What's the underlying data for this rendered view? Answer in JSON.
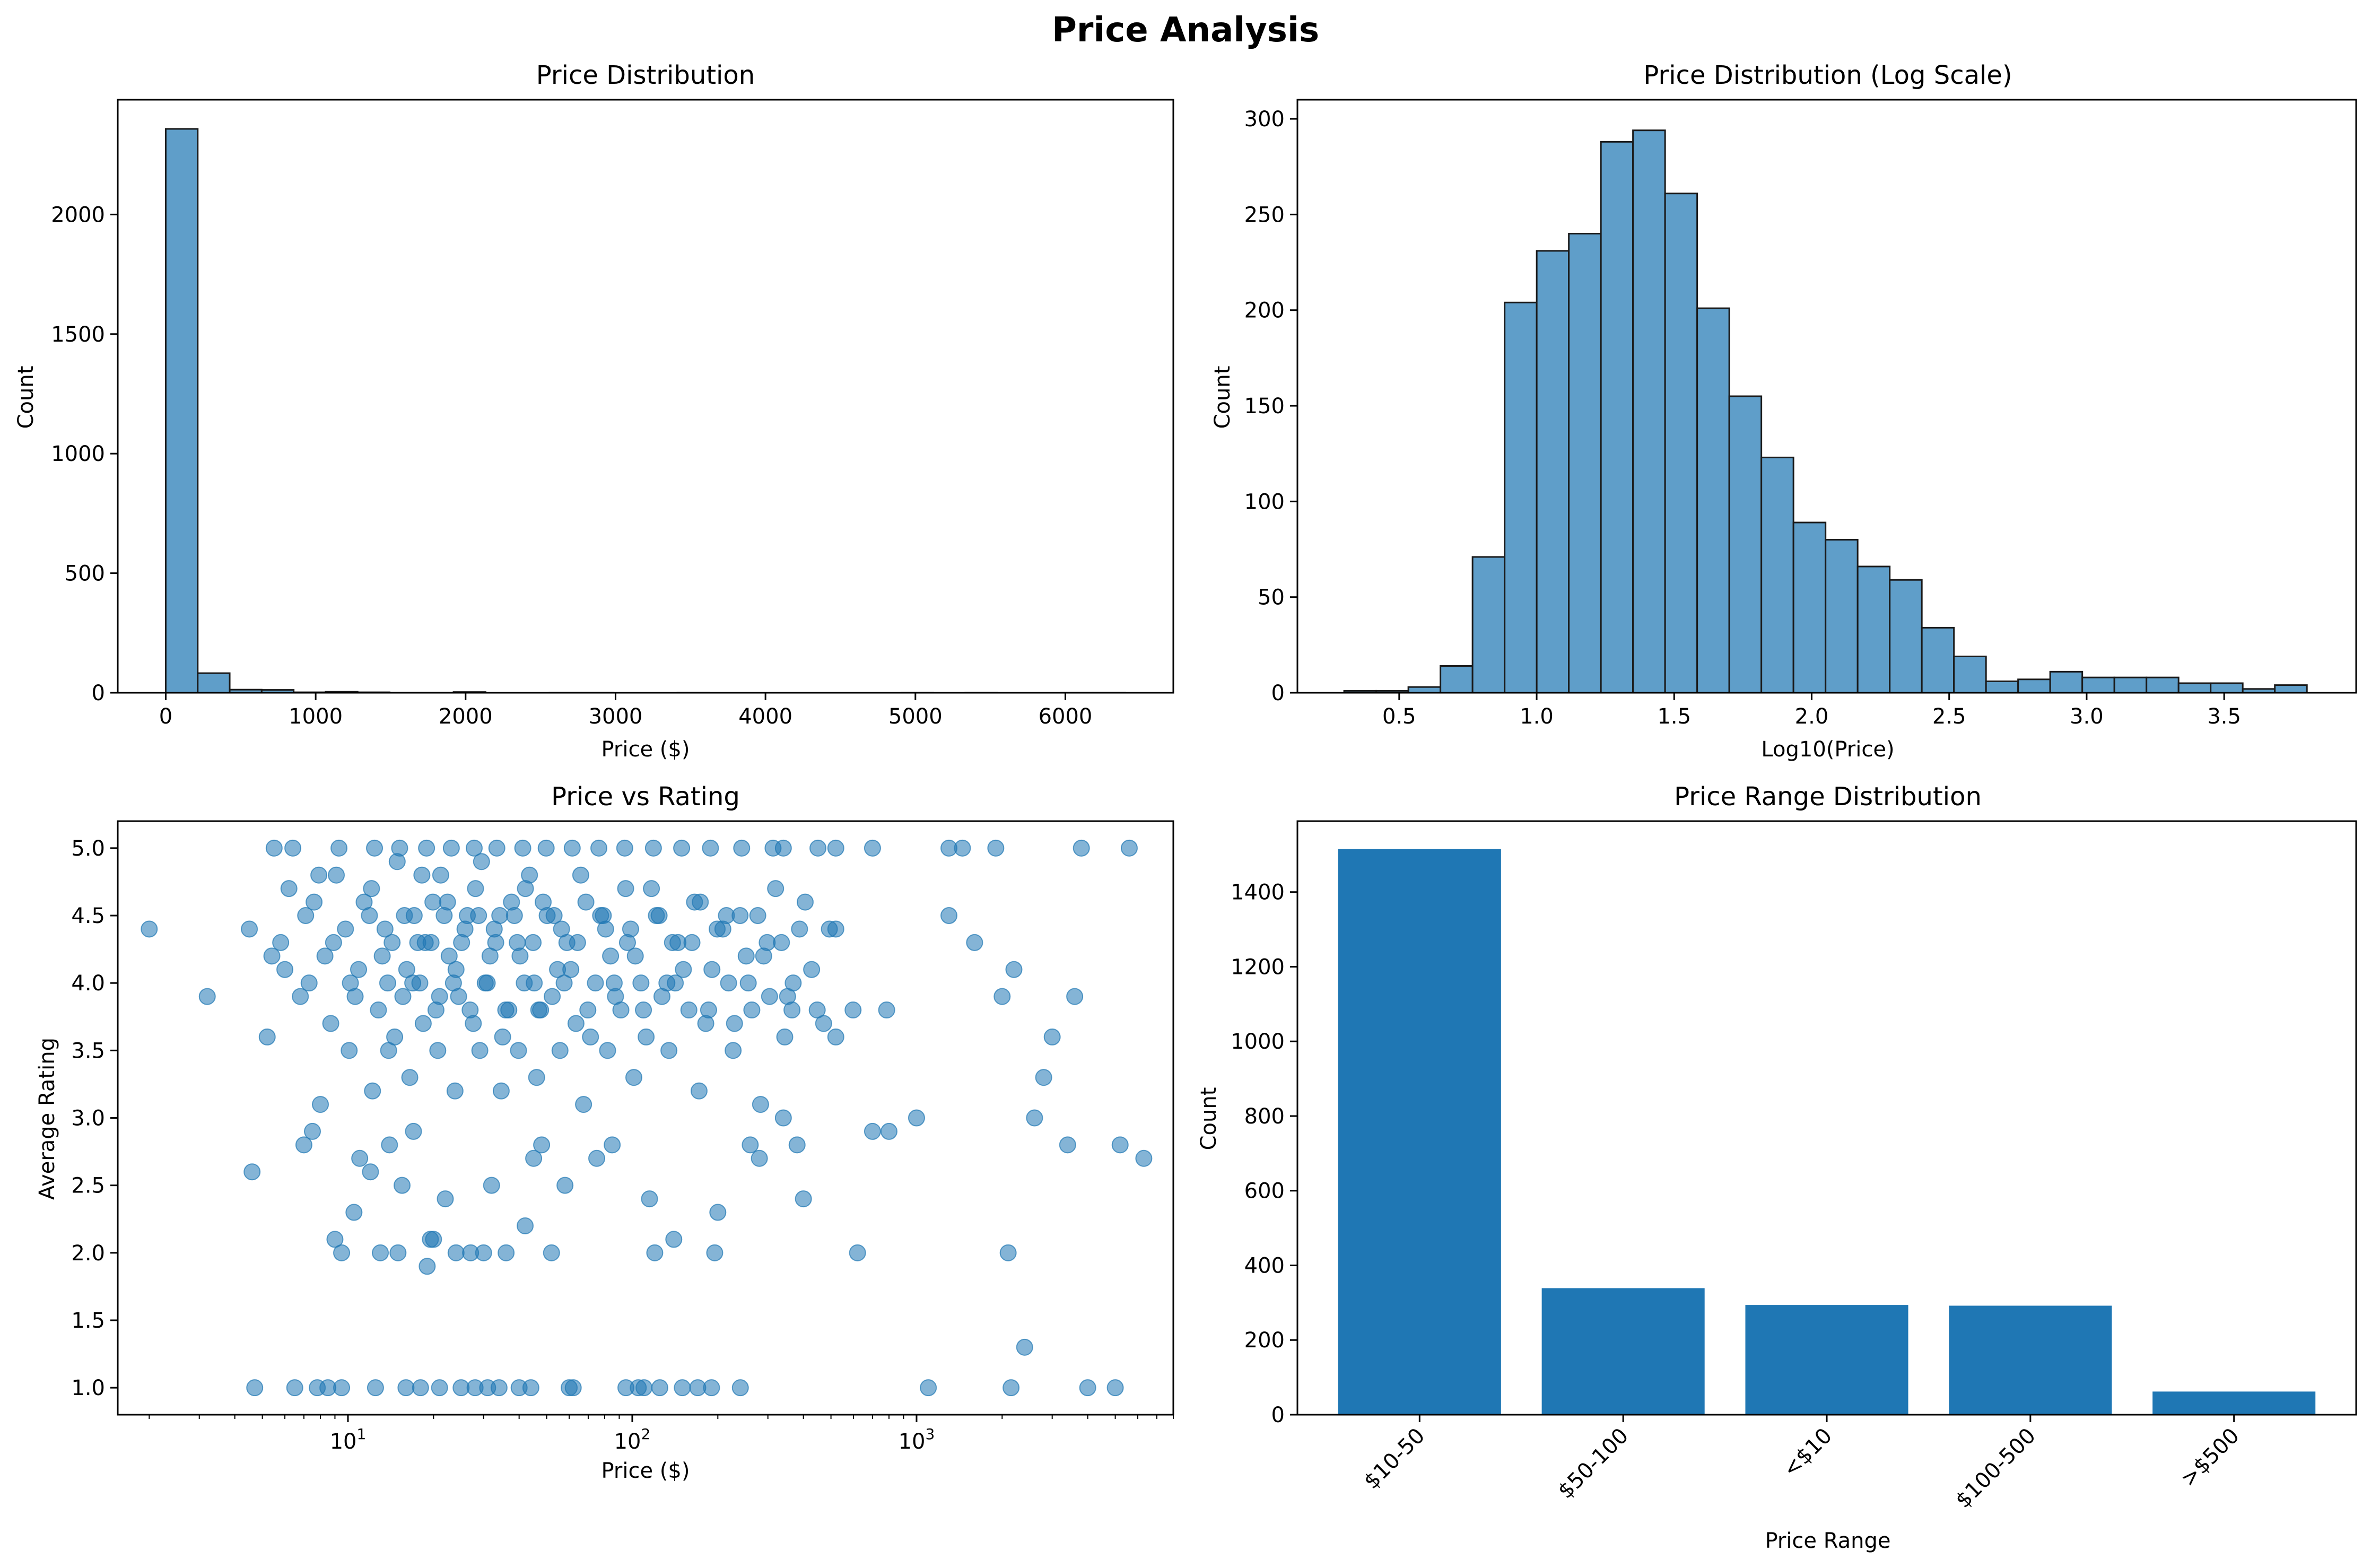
{
  "figure": {
    "title": "Price Analysis"
  },
  "colors": {
    "bar": "#1f77b4",
    "hist_face": "#5f9ec9",
    "hist_edge": "#1a1a1a",
    "axis": "#000000"
  },
  "chart_data": [
    {
      "id": "price-distribution",
      "type": "bar",
      "title": "Price Distribution",
      "xlabel": "Price ($)",
      "ylabel": "Count",
      "xlim": [
        -320,
        6720
      ],
      "ylim": [
        0,
        2480
      ],
      "xticks": [
        0,
        1000,
        2000,
        3000,
        4000,
        5000,
        6000
      ],
      "yticks": [
        0,
        500,
        1000,
        1500,
        2000
      ],
      "bin_start": 0,
      "bin_width": 213.3,
      "counts": [
        2358,
        82,
        13,
        12,
        2,
        4,
        2,
        1,
        1,
        3,
        0,
        0,
        1,
        1,
        0,
        0,
        1,
        0,
        0,
        0,
        0,
        0,
        0,
        1,
        0,
        1,
        0,
        0,
        1,
        1
      ]
    },
    {
      "id": "price-distribution-log",
      "type": "bar",
      "title": "Price Distribution (Log Scale)",
      "xlabel": "Log10(Price)",
      "ylabel": "Count",
      "xlim": [
        0.13,
        3.98
      ],
      "ylim": [
        0,
        310
      ],
      "xticks": [
        0.5,
        1.0,
        1.5,
        2.0,
        2.5,
        3.0,
        3.5
      ],
      "yticks": [
        0,
        50,
        100,
        150,
        200,
        250,
        300
      ],
      "bin_start": 0.3,
      "bin_width": 0.1167,
      "counts": [
        1,
        1,
        3,
        14,
        71,
        204,
        231,
        240,
        288,
        294,
        261,
        201,
        155,
        123,
        89,
        80,
        66,
        59,
        34,
        19,
        6,
        7,
        11,
        8,
        8,
        8,
        5,
        5,
        2,
        4
      ]
    },
    {
      "id": "price-vs-rating",
      "type": "scatter",
      "title": "Price vs Rating",
      "xlabel": "Price ($)",
      "ylabel": "Average Rating",
      "xscale": "log",
      "xlim": [
        1.55,
        8000
      ],
      "ylim": [
        0.8,
        5.2
      ],
      "xticks": [
        10,
        100,
        1000
      ],
      "xtick_labels": [
        {
          "base": "10",
          "exp": "1"
        },
        {
          "base": "10",
          "exp": "2"
        },
        {
          "base": "10",
          "exp": "3"
        }
      ],
      "yticks": [
        1.0,
        1.5,
        2.0,
        2.5,
        3.0,
        3.5,
        4.0,
        4.5,
        5.0
      ],
      "points": [
        [
          2,
          4.4
        ],
        [
          3.2,
          3.9
        ],
        [
          4.5,
          4.4
        ],
        [
          4.6,
          2.6
        ],
        [
          4.7,
          1.0
        ],
        [
          5.2,
          3.6
        ],
        [
          6,
          4.1
        ],
        [
          6.5,
          1.0
        ],
        [
          7,
          2.8
        ],
        [
          7.5,
          2.9
        ],
        [
          7.8,
          1.0
        ],
        [
          8,
          3.1
        ],
        [
          8.5,
          1.0
        ],
        [
          9,
          2.1
        ],
        [
          9.5,
          2.0
        ],
        [
          9.5,
          1.0
        ],
        [
          10.5,
          2.3
        ],
        [
          11,
          2.7
        ],
        [
          12,
          2.6
        ],
        [
          12.5,
          1.0
        ],
        [
          13,
          2.0
        ],
        [
          14,
          2.8
        ],
        [
          15,
          2.0
        ],
        [
          15.5,
          2.5
        ],
        [
          16,
          1.0
        ],
        [
          17,
          2.9
        ],
        [
          18,
          1.0
        ],
        [
          19,
          1.9
        ],
        [
          19.5,
          2.1
        ],
        [
          20,
          2.1
        ],
        [
          21,
          1.0
        ],
        [
          22,
          2.4
        ],
        [
          24,
          2.0
        ],
        [
          25,
          1.0
        ],
        [
          27,
          2.0
        ],
        [
          28,
          1.0
        ],
        [
          30,
          2.0
        ],
        [
          31,
          1.0
        ],
        [
          32,
          2.5
        ],
        [
          34,
          1.0
        ],
        [
          36,
          2.0
        ],
        [
          40,
          1.0
        ],
        [
          42,
          2.2
        ],
        [
          44,
          1.0
        ],
        [
          45,
          2.7
        ],
        [
          48,
          2.8
        ],
        [
          52,
          2.0
        ],
        [
          58,
          2.5
        ],
        [
          60,
          1.0
        ],
        [
          62,
          1.0
        ],
        [
          75,
          2.7
        ],
        [
          85,
          2.8
        ],
        [
          95,
          1.0
        ],
        [
          105,
          1.0
        ],
        [
          110,
          1.0
        ],
        [
          115,
          2.4
        ],
        [
          120,
          2.0
        ],
        [
          125,
          1.0
        ],
        [
          140,
          2.1
        ],
        [
          150,
          1.0
        ],
        [
          170,
          1.0
        ],
        [
          190,
          1.0
        ],
        [
          195,
          2.0
        ],
        [
          200,
          2.3
        ],
        [
          240,
          1.0
        ],
        [
          260,
          2.8
        ],
        [
          280,
          2.7
        ],
        [
          340,
          3.0
        ],
        [
          380,
          2.8
        ],
        [
          400,
          2.4
        ],
        [
          520,
          3.6
        ],
        [
          620,
          2.0
        ],
        [
          700,
          2.9
        ],
        [
          800,
          2.9
        ],
        [
          1000,
          3.0
        ],
        [
          1100,
          1.0
        ],
        [
          1300,
          4.5
        ],
        [
          1600,
          4.3
        ],
        [
          2000,
          3.9
        ],
        [
          2100,
          2.0
        ],
        [
          2150,
          1.0
        ],
        [
          2200,
          4.1
        ],
        [
          2400,
          1.3
        ],
        [
          2600,
          3.0
        ],
        [
          2800,
          3.3
        ],
        [
          3000,
          3.6
        ],
        [
          3400,
          2.8
        ],
        [
          3600,
          3.9
        ],
        [
          4000,
          1.0
        ],
        [
          5000,
          1.0
        ],
        [
          5200,
          2.8
        ],
        [
          6300,
          2.7
        ],
        [
          5.5,
          5.0
        ],
        [
          6.2,
          4.7
        ],
        [
          7.1,
          4.5
        ],
        [
          8.3,
          4.2
        ],
        [
          9.1,
          4.8
        ],
        [
          10.2,
          4.0
        ],
        [
          11.4,
          4.6
        ],
        [
          12.8,
          3.8
        ],
        [
          13.5,
          4.4
        ],
        [
          14.9,
          4.9
        ],
        [
          16.1,
          4.1
        ],
        [
          17.6,
          4.3
        ],
        [
          18.4,
          3.7
        ],
        [
          19.9,
          4.6
        ],
        [
          21.2,
          4.8
        ],
        [
          22.7,
          4.2
        ],
        [
          24.5,
          3.9
        ],
        [
          26.3,
          4.5
        ],
        [
          28.1,
          4.7
        ],
        [
          30.4,
          4.0
        ],
        [
          32.7,
          4.4
        ],
        [
          35.0,
          3.6
        ],
        [
          37.6,
          4.6
        ],
        [
          40.3,
          4.2
        ],
        [
          43.5,
          4.8
        ],
        [
          46.9,
          3.8
        ],
        [
          50.2,
          4.5
        ],
        [
          54.6,
          4.1
        ],
        [
          58.9,
          4.3
        ],
        [
          63.4,
          3.7
        ],
        [
          68.7,
          4.6
        ],
        [
          74.2,
          4.0
        ],
        [
          80.6,
          4.4
        ],
        [
          87.3,
          3.9
        ],
        [
          94.8,
          4.7
        ],
        [
          102.5,
          4.2
        ],
        [
          111.9,
          3.6
        ],
        [
          121.6,
          4.5
        ],
        [
          132.4,
          4.0
        ],
        [
          144.8,
          4.3
        ],
        [
          158.2,
          3.8
        ],
        [
          173.5,
          4.6
        ],
        [
          190.7,
          4.1
        ],
        [
          208.3,
          4.4
        ],
        [
          228.9,
          3.7
        ],
        [
          251.6,
          4.2
        ],
        [
          276.4,
          4.5
        ],
        [
          304.1,
          3.9
        ],
        [
          334.8,
          4.3
        ],
        [
          368.2,
          4.0
        ],
        [
          405.7,
          4.6
        ],
        [
          447.3,
          3.8
        ],
        [
          493.6,
          4.4
        ],
        [
          5.8,
          4.3
        ],
        [
          6.8,
          3.9
        ],
        [
          7.6,
          4.6
        ],
        [
          8.7,
          3.7
        ],
        [
          9.8,
          4.4
        ],
        [
          10.9,
          4.1
        ],
        [
          12.1,
          4.7
        ],
        [
          13.2,
          4.2
        ],
        [
          14.6,
          3.6
        ],
        [
          15.8,
          4.5
        ],
        [
          16.9,
          4.0
        ],
        [
          18.2,
          4.8
        ],
        [
          19.6,
          4.3
        ],
        [
          21.0,
          3.9
        ],
        [
          22.4,
          4.6
        ],
        [
          24.0,
          4.1
        ],
        [
          25.8,
          4.4
        ],
        [
          27.6,
          3.7
        ],
        [
          29.5,
          4.9
        ],
        [
          31.6,
          4.2
        ],
        [
          34.2,
          4.5
        ],
        [
          36.8,
          3.8
        ],
        [
          39.4,
          4.3
        ],
        [
          42.1,
          4.7
        ],
        [
          45.2,
          4.0
        ],
        [
          48.6,
          4.6
        ],
        [
          52.3,
          3.9
        ],
        [
          56.4,
          4.4
        ],
        [
          60.8,
          4.1
        ],
        [
          65.9,
          4.8
        ],
        [
          71.3,
          3.6
        ],
        [
          77.4,
          4.5
        ],
        [
          83.9,
          4.2
        ],
        [
          91.2,
          3.8
        ],
        [
          98.7,
          4.4
        ],
        [
          107.3,
          4.0
        ],
        [
          116.8,
          4.7
        ],
        [
          127.2,
          3.9
        ],
        [
          138.5,
          4.3
        ],
        [
          151.3,
          4.1
        ],
        [
          165.6,
          4.6
        ],
        [
          181.4,
          3.7
        ],
        [
          198.9,
          4.4
        ],
        [
          218.2,
          4.0
        ],
        [
          239.5,
          4.5
        ],
        [
          263.4,
          3.8
        ],
        [
          289.9,
          4.2
        ],
        [
          319.3,
          4.7
        ],
        [
          351.8,
          3.9
        ],
        [
          387.6,
          4.4
        ],
        [
          427.5,
          4.1
        ],
        [
          471.2,
          3.7
        ],
        [
          520.0,
          4.4
        ],
        [
          6.4,
          5.0
        ],
        [
          9.3,
          5.0
        ],
        [
          12.4,
          5.0
        ],
        [
          15.2,
          5.0
        ],
        [
          18.9,
          5.0
        ],
        [
          23.1,
          5.0
        ],
        [
          27.8,
          5.0
        ],
        [
          33.4,
          5.0
        ],
        [
          41.2,
          5.0
        ],
        [
          49.8,
          5.0
        ],
        [
          61.5,
          5.0
        ],
        [
          76.3,
          5.0
        ],
        [
          94.1,
          5.0
        ],
        [
          118.7,
          5.0
        ],
        [
          149.2,
          5.0
        ],
        [
          188.4,
          5.0
        ],
        [
          242.6,
          5.0
        ],
        [
          312.8,
          5.0
        ],
        [
          340,
          5.0
        ],
        [
          450,
          5.0
        ],
        [
          520,
          5.0
        ],
        [
          700,
          5.0
        ],
        [
          1300,
          5.0
        ],
        [
          1450,
          5.0
        ],
        [
          1900,
          5.0
        ],
        [
          3800,
          5.0
        ],
        [
          5600,
          5.0
        ],
        [
          7.3,
          4.0
        ],
        [
          8.9,
          4.3
        ],
        [
          10.6,
          3.9
        ],
        [
          11.9,
          4.5
        ],
        [
          13.8,
          4.0
        ],
        [
          14.3,
          4.3
        ],
        [
          15.6,
          3.9
        ],
        [
          17.1,
          4.5
        ],
        [
          17.9,
          4.0
        ],
        [
          18.7,
          4.3
        ],
        [
          20.4,
          3.8
        ],
        [
          21.8,
          4.5
        ],
        [
          23.5,
          4.0
        ],
        [
          25.1,
          4.3
        ],
        [
          26.9,
          3.8
        ],
        [
          28.8,
          4.5
        ],
        [
          30.9,
          4.0
        ],
        [
          33.1,
          4.3
        ],
        [
          35.9,
          3.8
        ],
        [
          38.5,
          4.5
        ],
        [
          41.7,
          4.0
        ],
        [
          44.8,
          4.3
        ],
        [
          47.6,
          3.8
        ],
        [
          53.1,
          4.5
        ],
        [
          57.6,
          4.0
        ],
        [
          64.2,
          4.3
        ],
        [
          69.8,
          3.8
        ],
        [
          79.1,
          4.5
        ],
        [
          86.4,
          4.0
        ],
        [
          96.2,
          4.3
        ],
        [
          109.5,
          3.8
        ],
        [
          124.3,
          4.5
        ],
        [
          141.7,
          4.0
        ],
        [
          162.2,
          4.3
        ],
        [
          185.6,
          3.8
        ],
        [
          214.4,
          4.5
        ],
        [
          255.9,
          4.0
        ],
        [
          298.3,
          4.3
        ],
        [
          364.6,
          3.8
        ],
        [
          5.4,
          4.2
        ],
        [
          7.9,
          4.8
        ],
        [
          10.1,
          3.5
        ],
        [
          12.2,
          3.2
        ],
        [
          13.9,
          3.5
        ],
        [
          16.5,
          3.3
        ],
        [
          20.7,
          3.5
        ],
        [
          23.8,
          3.2
        ],
        [
          29.1,
          3.5
        ],
        [
          34.6,
          3.2
        ],
        [
          39.8,
          3.5
        ],
        [
          46.1,
          3.3
        ],
        [
          55.7,
          3.5
        ],
        [
          67.4,
          3.1
        ],
        [
          81.9,
          3.5
        ],
        [
          101.3,
          3.3
        ],
        [
          134.6,
          3.5
        ],
        [
          171.8,
          3.2
        ],
        [
          226.4,
          3.5
        ],
        [
          282.7,
          3.1
        ],
        [
          343.9,
          3.6
        ],
        [
          598.0,
          3.8
        ],
        [
          785.0,
          3.8
        ]
      ]
    },
    {
      "id": "price-range-distribution",
      "type": "bar",
      "title": "Price Range Distribution",
      "xlabel": "Price Range",
      "ylabel": "Count",
      "ylim": [
        0,
        1590
      ],
      "yticks": [
        0,
        200,
        400,
        600,
        800,
        1000,
        1200,
        1400
      ],
      "categories": [
        "$10-50",
        "$50-100",
        "<$10",
        "$100-500",
        ">$500"
      ],
      "values": [
        1515,
        339,
        294,
        292,
        62
      ]
    }
  ]
}
